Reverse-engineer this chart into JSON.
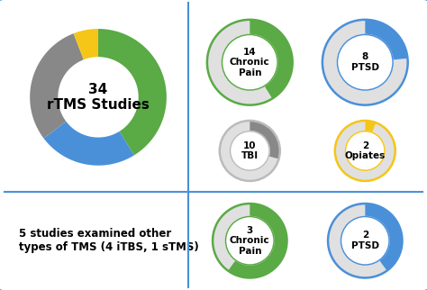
{
  "main_donut": {
    "values": [
      14,
      8,
      10,
      2
    ],
    "colors": [
      "#5aaa45",
      "#4a90d9",
      "#888888",
      "#f5c518"
    ],
    "total": 34,
    "label": "34\nrTMS Studies",
    "ring_inner": 0.58
  },
  "small_donuts_top": [
    {
      "value": 14,
      "total": 34,
      "color": "#5aaa45",
      "ring_color": "#5aaa45",
      "label": "14\nChronic\nPain"
    },
    {
      "value": 8,
      "total": 34,
      "color": "#4a90d9",
      "ring_color": "#4a90d9",
      "label": "8\nPTSD"
    }
  ],
  "small_donuts_mid": [
    {
      "value": 10,
      "total": 34,
      "color": "#888888",
      "ring_color": "#bbbbbb",
      "label": "10\nTBI"
    },
    {
      "value": 2,
      "total": 34,
      "color": "#f5c518",
      "ring_color": "#f5c518",
      "label": "2\nOpiates"
    }
  ],
  "small_donuts_bot": [
    {
      "value": 3,
      "total": 5,
      "color": "#5aaa45",
      "ring_color": "#5aaa45",
      "label": "3\nChronic\nPain"
    },
    {
      "value": 2,
      "total": 5,
      "color": "#4a90d9",
      "ring_color": "#4a90d9",
      "label": "2\nPTSD"
    }
  ],
  "bottom_text": "5 studies examined other\ntypes of TMS (4 iTBS, 1 sTMS)",
  "border_color": "#4a90d9",
  "divider_color": "#4a90d9",
  "bg_color": "#ffffff",
  "main_label_fontsize": 11,
  "small_label_fontsize": 7.5
}
